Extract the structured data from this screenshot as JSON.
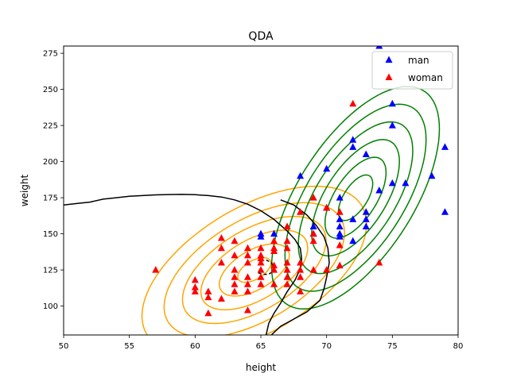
{
  "chart_data": {
    "type": "scatter",
    "title": "QDA",
    "xlabel": "height",
    "ylabel": "weight",
    "xlim": [
      50,
      80
    ],
    "ylim": [
      80,
      280
    ],
    "xticks": [
      50,
      55,
      60,
      65,
      70,
      75,
      80
    ],
    "yticks": [
      100,
      125,
      150,
      175,
      200,
      225,
      250,
      275
    ],
    "legend_position": "top-right",
    "grid": false,
    "marker": "triangle-up",
    "series": [
      {
        "name": "man",
        "color": "#0000ff",
        "points": [
          [
            74,
            280
          ],
          [
            75,
            240
          ],
          [
            72,
            215
          ],
          [
            72,
            210
          ],
          [
            73,
            205
          ],
          [
            75,
            225
          ],
          [
            79,
            210
          ],
          [
            70,
            195
          ],
          [
            68,
            190
          ],
          [
            78,
            190
          ],
          [
            75,
            185
          ],
          [
            76,
            185
          ],
          [
            74,
            180
          ],
          [
            71,
            175
          ],
          [
            72,
            160
          ],
          [
            73,
            160
          ],
          [
            73,
            165
          ],
          [
            73,
            155
          ],
          [
            71,
            160
          ],
          [
            71,
            155
          ],
          [
            71,
            150
          ],
          [
            71,
            148
          ],
          [
            70,
            168
          ],
          [
            69,
            155
          ],
          [
            69,
            150
          ],
          [
            65,
            150
          ],
          [
            65,
            148
          ],
          [
            66,
            150
          ],
          [
            72,
            145
          ],
          [
            79,
            165
          ]
        ]
      },
      {
        "name": "woman",
        "color": "#ff0000",
        "points": [
          [
            72,
            240
          ],
          [
            69,
            175
          ],
          [
            71,
            165
          ],
          [
            68,
            165
          ],
          [
            70,
            168
          ],
          [
            67,
            155
          ],
          [
            67,
            145
          ],
          [
            67,
            140
          ],
          [
            69,
            150
          ],
          [
            69,
            145
          ],
          [
            71,
            142
          ],
          [
            66,
            145
          ],
          [
            66,
            140
          ],
          [
            65,
            140
          ],
          [
            64,
            140
          ],
          [
            64,
            135
          ],
          [
            63,
            145
          ],
          [
            62,
            147
          ],
          [
            62,
            140
          ],
          [
            63,
            135
          ],
          [
            62,
            130
          ],
          [
            64,
            130
          ],
          [
            65,
            133
          ],
          [
            65,
            135
          ],
          [
            66,
            128
          ],
          [
            68,
            130
          ],
          [
            71,
            128
          ],
          [
            74,
            130
          ],
          [
            57,
            125
          ],
          [
            60,
            118
          ],
          [
            60,
            113
          ],
          [
            60,
            110
          ],
          [
            61,
            110
          ],
          [
            61,
            106
          ],
          [
            62,
            105
          ],
          [
            61,
            95
          ],
          [
            63,
            125
          ],
          [
            63,
            120
          ],
          [
            63,
            115
          ],
          [
            63,
            110
          ],
          [
            64,
            120
          ],
          [
            64,
            115
          ],
          [
            64,
            110
          ],
          [
            65,
            125
          ],
          [
            65,
            120
          ],
          [
            65,
            115
          ],
          [
            66,
            125
          ],
          [
            66,
            115
          ],
          [
            67,
            125
          ],
          [
            67,
            120
          ],
          [
            67,
            115
          ],
          [
            68,
            120
          ],
          [
            68,
            110
          ],
          [
            69,
            125
          ],
          [
            70,
            125
          ],
          [
            64,
            97
          ],
          [
            66,
            138
          ],
          [
            68,
            125
          ],
          [
            65,
            130
          ],
          [
            67,
            130
          ]
        ]
      }
    ],
    "contours": [
      {
        "group": "woman",
        "color": "#ffa500",
        "center": [
          64.5,
          125
        ],
        "sd_x": 2.8,
        "sd_y": 19,
        "correlation": 0.55,
        "levels": [
          0.45,
          0.95,
          1.45,
          1.95,
          2.45,
          3.05
        ]
      },
      {
        "group": "man",
        "color": "#008000",
        "center": [
          72.2,
          175
        ],
        "sd_x": 2.9,
        "sd_y": 35,
        "correlation": 0.62,
        "levels": [
          0.45,
          0.8,
          1.15,
          1.5,
          1.85,
          2.2
        ]
      }
    ],
    "decision_boundary": {
      "color": "#000000",
      "solid": [
        [
          50,
          170
        ],
        [
          51,
          171
        ],
        [
          52,
          172
        ],
        [
          53,
          174
        ],
        [
          54,
          175
        ],
        [
          55,
          176
        ],
        [
          56,
          176.5
        ],
        [
          57,
          177
        ],
        [
          58,
          177.2
        ],
        [
          59,
          177.3
        ],
        [
          60,
          177.1
        ],
        [
          61,
          176.5
        ],
        [
          62,
          175.5
        ],
        [
          63,
          173.5
        ],
        [
          64,
          170.5
        ],
        [
          65,
          166
        ],
        [
          66,
          160
        ],
        [
          67,
          152
        ],
        [
          67.6,
          146
        ],
        [
          68,
          140
        ],
        [
          68.1,
          132.5
        ],
        [
          68,
          126
        ],
        [
          67.6,
          118
        ],
        [
          67,
          110
        ],
        [
          66.5,
          102
        ],
        [
          66,
          95
        ],
        [
          65.6,
          88
        ],
        [
          65.4,
          80
        ]
      ],
      "right_branch": [
        [
          65.8,
          80
        ],
        [
          66.5,
          86
        ],
        [
          67.5,
          91
        ],
        [
          68.5,
          96
        ],
        [
          69.5,
          104
        ],
        [
          69.8,
          112
        ],
        [
          70,
          120
        ],
        [
          70.2,
          130
        ],
        [
          70.1,
          140
        ],
        [
          69.8,
          148
        ],
        [
          69.2,
          156
        ],
        [
          68.5,
          163
        ],
        [
          67.5,
          170
        ],
        [
          66.5,
          173.5
        ]
      ],
      "dashed": [
        [
          65,
          131
        ],
        [
          65.4,
          132
        ],
        [
          65.8,
          130
        ],
        [
          66,
          127
        ],
        [
          65.9,
          124
        ],
        [
          65.6,
          122
        ],
        [
          65.2,
          122
        ],
        [
          64.8,
          123
        ]
      ]
    }
  }
}
